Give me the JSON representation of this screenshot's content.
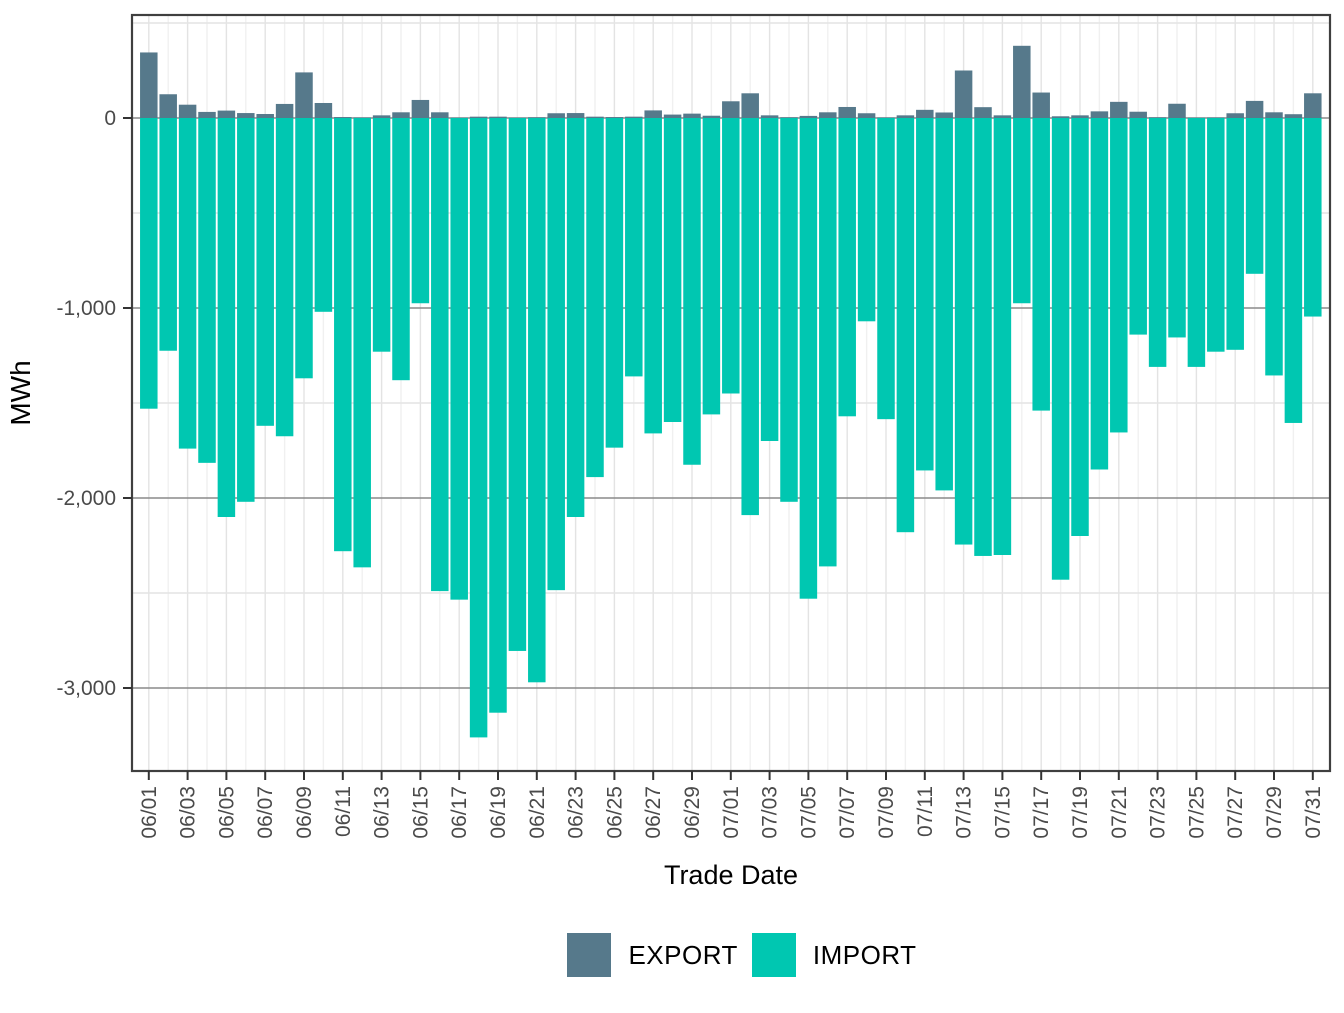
{
  "figure": {
    "x_axis_title": "Trade Date",
    "y_axis_title": "MWh",
    "background_color": "#ffffff",
    "panel_border_color": "#3f3f3f",
    "grid_major_color": "#8a8a8a",
    "grid_minor_color": "#e4e4e4",
    "grid_vertical_major_color": "#e3e3e3",
    "grid_vertical_minor_color": "#f0f0f0",
    "tick_color": "#333333",
    "tick_label_color": "#4a4a4a"
  },
  "y_axis": {
    "ticks": [
      {
        "label": "0",
        "value": 0
      },
      {
        "label": "-1,000",
        "value": -1000
      },
      {
        "label": "-2,000",
        "value": -2000
      },
      {
        "label": "-3,000",
        "value": -3000
      }
    ],
    "minor_values": [
      500,
      -500,
      -1500,
      -2500
    ]
  },
  "legend": {
    "items": [
      {
        "label": "EXPORT",
        "color": "#56798B"
      },
      {
        "label": "IMPORT",
        "color": "#00C7B1"
      }
    ]
  },
  "chart_data": {
    "type": "bar",
    "title": "",
    "xlabel": "Trade Date",
    "ylabel": "MWh",
    "ylim": [
      -3440,
      560
    ],
    "grid": true,
    "legend_position": "bottom",
    "x_labels_every": 2,
    "categories": [
      "06/01",
      "06/02",
      "06/03",
      "06/04",
      "06/05",
      "06/06",
      "06/07",
      "06/08",
      "06/09",
      "06/10",
      "06/11",
      "06/12",
      "06/13",
      "06/14",
      "06/15",
      "06/16",
      "06/17",
      "06/18",
      "06/19",
      "06/20",
      "06/21",
      "06/22",
      "06/23",
      "06/24",
      "06/25",
      "06/26",
      "06/27",
      "06/28",
      "06/29",
      "06/30",
      "07/01",
      "07/02",
      "07/03",
      "07/04",
      "07/05",
      "07/06",
      "07/07",
      "07/08",
      "07/09",
      "07/10",
      "07/11",
      "07/12",
      "07/13",
      "07/14",
      "07/15",
      "07/16",
      "07/17",
      "07/18",
      "07/19",
      "07/20",
      "07/21",
      "07/22",
      "07/23",
      "07/24",
      "07/25",
      "07/26",
      "07/27",
      "07/28",
      "07/29",
      "07/30",
      "07/31"
    ],
    "series": [
      {
        "name": "EXPORT",
        "color": "#56798B",
        "values": [
          345,
          125,
          70,
          32,
          39,
          26,
          21,
          74,
          240,
          79,
          5,
          3,
          14,
          30,
          95,
          30,
          2,
          7,
          7,
          2,
          4,
          25,
          26,
          7,
          5,
          7,
          40,
          18,
          23,
          12,
          88,
          130,
          14,
          4,
          11,
          30,
          58,
          25,
          3,
          14,
          43,
          29,
          250,
          57,
          14,
          380,
          134,
          9,
          14,
          35,
          85,
          33,
          4,
          75,
          2,
          3,
          25,
          90,
          30,
          20,
          130
        ]
      },
      {
        "name": "IMPORT",
        "color": "#00C7B1",
        "values": [
          -1530,
          -1225,
          -1740,
          -1815,
          -2100,
          -2020,
          -1620,
          -1675,
          -1370,
          -1020,
          -2280,
          -2365,
          -1230,
          -1380,
          -975,
          -2490,
          -2535,
          -3260,
          -3130,
          -2805,
          -2970,
          -2485,
          -2100,
          -1890,
          -1735,
          -1360,
          -1660,
          -1600,
          -1825,
          -1560,
          -1450,
          -2090,
          -1700,
          -2020,
          -2530,
          -2360,
          -1570,
          -1070,
          -1585,
          -2180,
          -1855,
          -1960,
          -2245,
          -2305,
          -2300,
          -975,
          -1540,
          -2430,
          -2200,
          -1850,
          -1655,
          -1140,
          -1310,
          -1155,
          -1310,
          -1230,
          -1220,
          -820,
          -1355,
          -1605,
          -1045
        ]
      }
    ]
  }
}
